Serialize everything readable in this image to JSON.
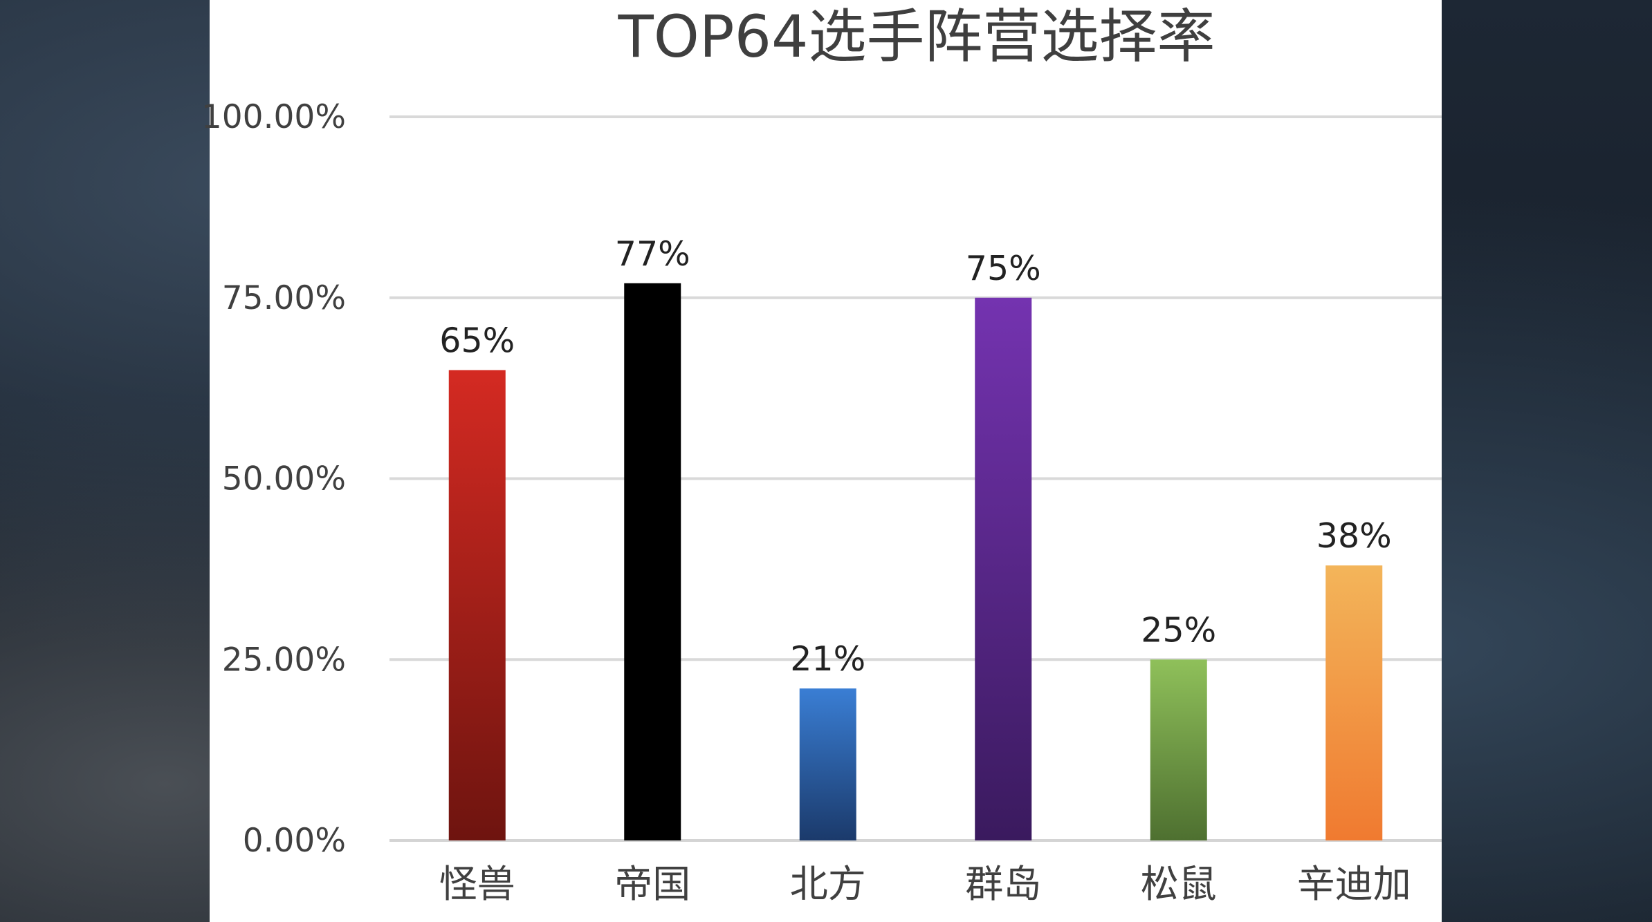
{
  "chart_data": {
    "type": "bar",
    "title": "TOP64选手阵营选择率",
    "categories": [
      "怪兽",
      "帝国",
      "北方",
      "群岛",
      "松鼠",
      "辛迪加"
    ],
    "values": [
      0.65,
      0.77,
      0.21,
      0.75,
      0.25,
      0.38
    ],
    "data_labels": [
      "65%",
      "77%",
      "21%",
      "75%",
      "25%",
      "38%"
    ],
    "yticks": [
      "0.00%",
      "25.00%",
      "50.00%",
      "75.00%",
      "100.00%"
    ],
    "ylim": [
      0,
      1
    ],
    "grid": true,
    "legend": "none",
    "bar_colors": [
      [
        "#d42a22",
        "#6e140f"
      ],
      [
        "#000000",
        "#000000"
      ],
      [
        "#3a7ed4",
        "#1b3a6b"
      ],
      [
        "#7433b0",
        "#3a1a5e"
      ],
      [
        "#8fc05a",
        "#4e7030"
      ],
      [
        "#f3b55a",
        "#f07a30"
      ]
    ],
    "xlabel": "",
    "ylabel": ""
  }
}
